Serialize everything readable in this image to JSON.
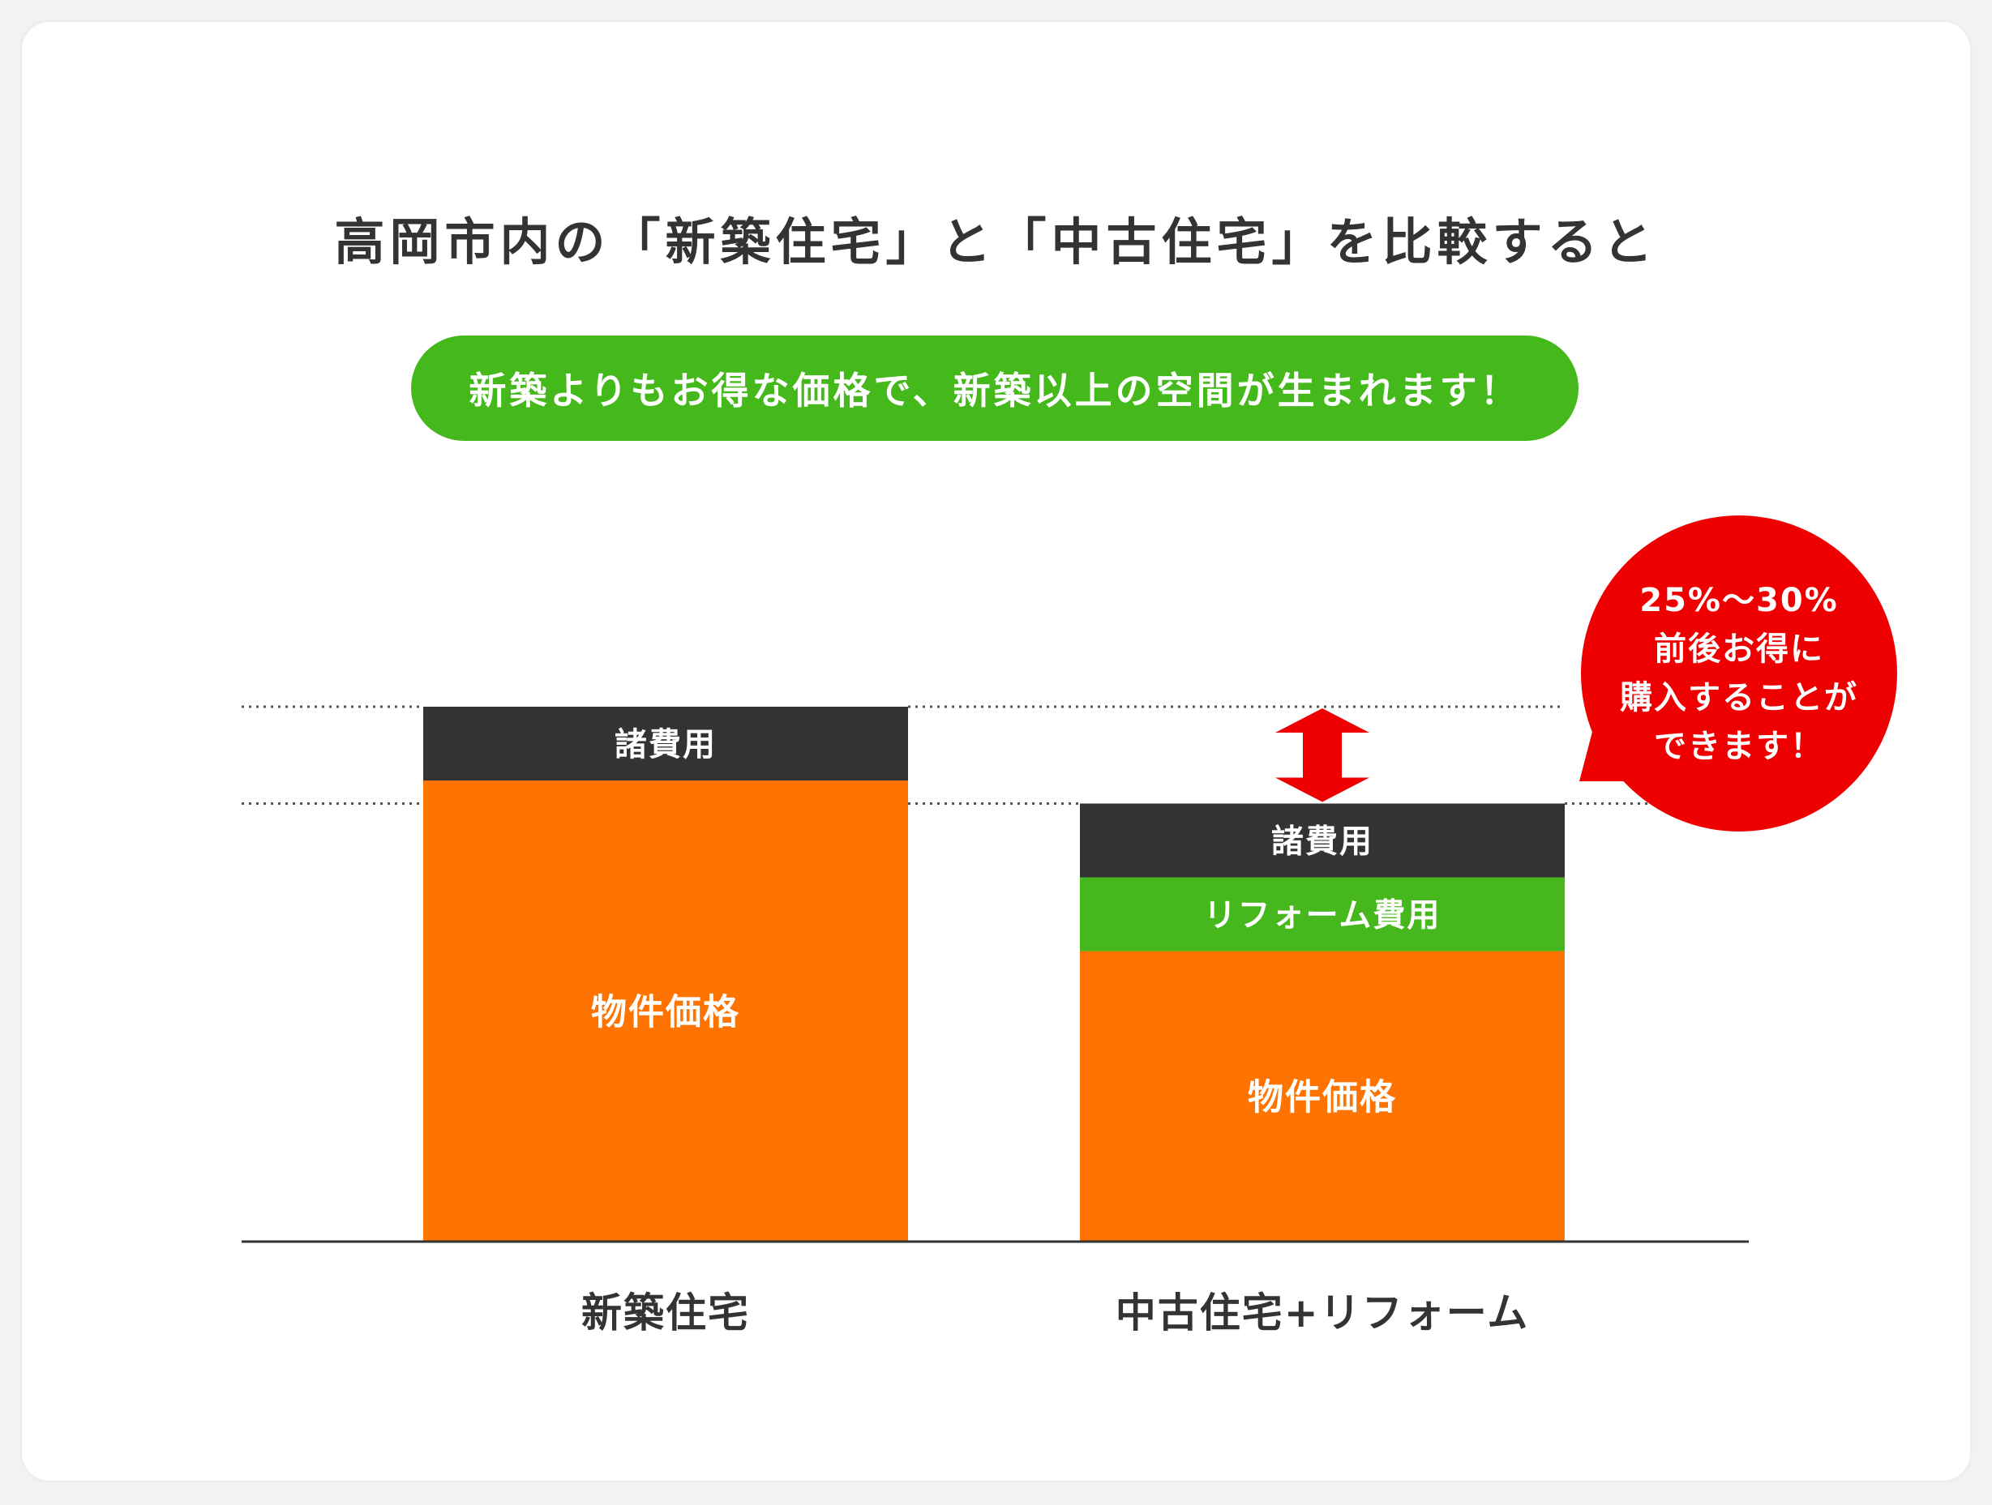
{
  "title": "高岡市内の「新築住宅」と「中古住宅」を比較すると",
  "tagline": "新築よりもお得な価格で、新築以上の空間が生まれます！",
  "callout": {
    "lines": [
      "25%〜30%",
      "前後お得に",
      "購入することが",
      "できます！"
    ]
  },
  "colors": {
    "property": "#ff7300",
    "fees": "#333333",
    "reform": "#46b81e",
    "accent_green": "#45b81c",
    "callout_red": "#ee0000",
    "arrow_red": "#ee0000",
    "baseline": "#333333",
    "guide": "#555555",
    "title_text": "#333333"
  },
  "chart_data": {
    "type": "bar",
    "stacked": true,
    "categories": [
      "新築住宅",
      "中古住宅+リフォーム"
    ],
    "series": [
      {
        "name": "物件価格",
        "values": [
          100,
          63
        ]
      },
      {
        "name": "リフォーム費用",
        "values": [
          0,
          16
        ]
      },
      {
        "name": "諸費用",
        "values": [
          16,
          16
        ]
      }
    ],
    "ylim": [
      0,
      116
    ],
    "grid": false,
    "legend": "none",
    "reference_lines": [
      "新築住宅 total",
      "中古住宅+リフォーム total"
    ]
  }
}
